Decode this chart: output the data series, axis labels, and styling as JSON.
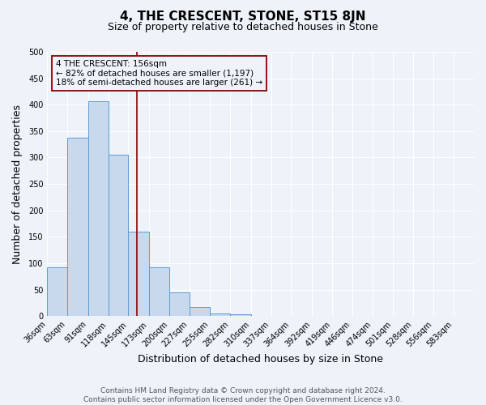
{
  "title": "4, THE CRESCENT, STONE, ST15 8JN",
  "subtitle": "Size of property relative to detached houses in Stone",
  "xlabel": "Distribution of detached houses by size in Stone",
  "ylabel": "Number of detached properties",
  "footer_line1": "Contains HM Land Registry data © Crown copyright and database right 2024.",
  "footer_line2": "Contains public sector information licensed under the Open Government Licence v3.0.",
  "bin_labels": [
    "36sqm",
    "63sqm",
    "91sqm",
    "118sqm",
    "145sqm",
    "173sqm",
    "200sqm",
    "227sqm",
    "255sqm",
    "282sqm",
    "310sqm",
    "337sqm",
    "364sqm",
    "392sqm",
    "419sqm",
    "446sqm",
    "474sqm",
    "501sqm",
    "528sqm",
    "556sqm",
    "583sqm"
  ],
  "bin_edges": [
    36,
    63,
    91,
    118,
    145,
    173,
    200,
    227,
    255,
    282,
    310,
    337,
    364,
    392,
    419,
    446,
    474,
    501,
    528,
    556,
    583
  ],
  "bar_heights": [
    93,
    338,
    407,
    305,
    160,
    93,
    45,
    17,
    5,
    4,
    0,
    0,
    0,
    0,
    0,
    0,
    1,
    0,
    0,
    1
  ],
  "bar_color": "#c8d9ed",
  "bar_edge_color": "#5b9bd5",
  "vline_x": 156,
  "vline_color": "#8b0000",
  "annotation_line1": "4 THE CRESCENT: 156sqm",
  "annotation_line2": "← 82% of detached houses are smaller (1,197)",
  "annotation_line3": "18% of semi-detached houses are larger (261) →",
  "annotation_box_color": "#8b0000",
  "ylim": [
    0,
    500
  ],
  "xlim_left": 36,
  "xlim_right": 610,
  "background_color": "#eef2f9",
  "grid_color": "#ffffff",
  "title_fontsize": 11,
  "subtitle_fontsize": 9,
  "axis_label_fontsize": 9,
  "tick_fontsize": 7,
  "annotation_fontsize": 7.5,
  "footer_fontsize": 6.5
}
